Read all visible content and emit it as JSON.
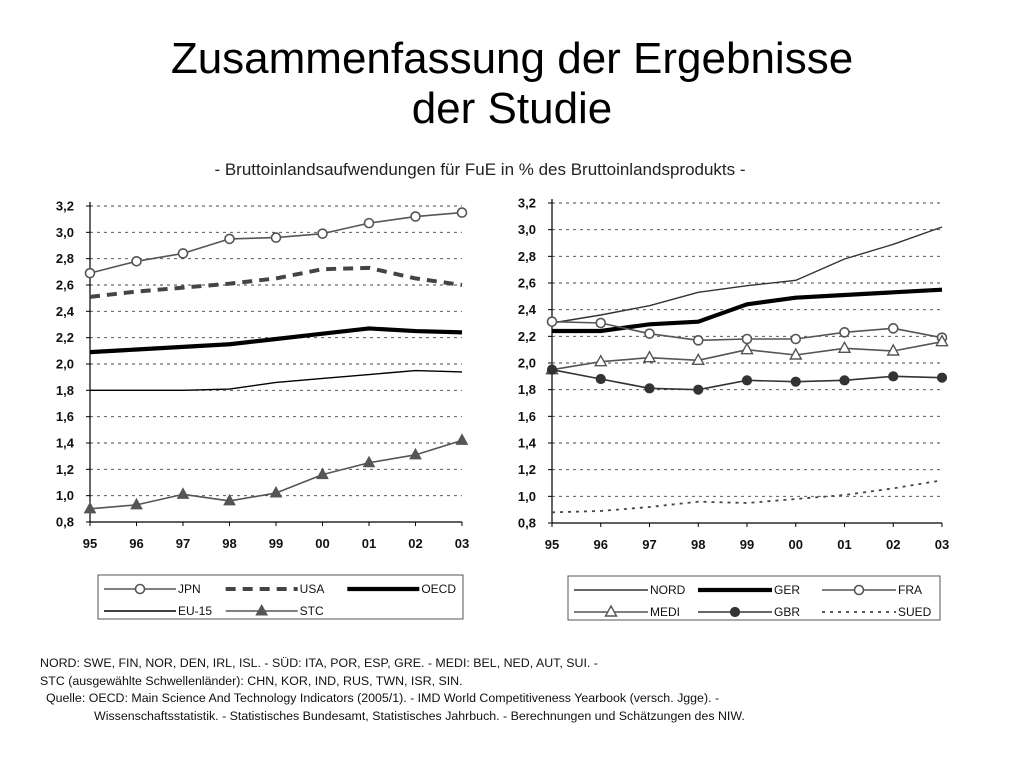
{
  "page": {
    "title_line1": "Zusammenfassung der Ergebnisse",
    "title_line2": "der Studie",
    "subtitle": "- Bruttoinlandsaufwendungen für FuE in % des Bruttoinlandsprodukts -"
  },
  "chart_data": [
    {
      "type": "line",
      "x": [
        "95",
        "96",
        "97",
        "98",
        "99",
        "00",
        "01",
        "02",
        "03"
      ],
      "ylim": [
        0.8,
        3.2
      ],
      "yticks": [
        "0,8",
        "1,0",
        "1,2",
        "1,4",
        "1,6",
        "1,8",
        "2,0",
        "2,2",
        "2,4",
        "2,6",
        "2,8",
        "3,0",
        "3,2"
      ],
      "grid": "horizontal dashed",
      "legend_position": "bottom",
      "series": [
        {
          "name": "JPN",
          "style": "line-open-circle",
          "color": "#555555",
          "values": [
            2.69,
            2.78,
            2.84,
            2.95,
            2.96,
            2.99,
            3.07,
            3.12,
            3.15
          ]
        },
        {
          "name": "USA",
          "style": "thick-dashed",
          "color": "#444444",
          "values": [
            2.51,
            2.55,
            2.58,
            2.61,
            2.65,
            2.72,
            2.73,
            2.65,
            2.6
          ]
        },
        {
          "name": "OECD",
          "style": "very-thick",
          "color": "#000000",
          "values": [
            2.09,
            2.11,
            2.13,
            2.15,
            2.19,
            2.23,
            2.27,
            2.25,
            2.24
          ]
        },
        {
          "name": "EU-15",
          "style": "thin",
          "color": "#000000",
          "values": [
            1.8,
            1.8,
            1.8,
            1.81,
            1.86,
            1.89,
            1.92,
            1.95,
            1.94
          ]
        },
        {
          "name": "STC",
          "style": "line-filled-triangle",
          "color": "#555555",
          "values": [
            0.9,
            0.93,
            1.01,
            0.96,
            1.02,
            1.16,
            1.25,
            1.31,
            1.42
          ]
        }
      ]
    },
    {
      "type": "line",
      "x": [
        "95",
        "96",
        "97",
        "98",
        "99",
        "00",
        "01",
        "02",
        "03"
      ],
      "ylim": [
        0.8,
        3.2
      ],
      "yticks": [
        "0,8",
        "1,0",
        "1,2",
        "1,4",
        "1,6",
        "1,8",
        "2,0",
        "2,2",
        "2,4",
        "2,6",
        "2,8",
        "3,0",
        "3,2"
      ],
      "grid": "horizontal dashed",
      "legend_position": "bottom",
      "series": [
        {
          "name": "NORD",
          "style": "thin",
          "color": "#333333",
          "values": [
            2.3,
            2.36,
            2.43,
            2.53,
            2.58,
            2.62,
            2.78,
            2.89,
            3.02
          ]
        },
        {
          "name": "GER",
          "style": "very-thick",
          "color": "#000000",
          "values": [
            2.24,
            2.24,
            2.29,
            2.31,
            2.44,
            2.49,
            2.51,
            2.53,
            2.55
          ]
        },
        {
          "name": "FRA",
          "style": "line-open-circle",
          "color": "#555555",
          "values": [
            2.31,
            2.3,
            2.22,
            2.17,
            2.18,
            2.18,
            2.23,
            2.26,
            2.19
          ]
        },
        {
          "name": "MEDI",
          "style": "line-open-triangle",
          "color": "#555555",
          "values": [
            1.95,
            2.01,
            2.04,
            2.02,
            2.1,
            2.06,
            2.11,
            2.09,
            2.16
          ]
        },
        {
          "name": "GBR",
          "style": "line-filled-circle",
          "color": "#333333",
          "values": [
            1.95,
            1.88,
            1.81,
            1.8,
            1.87,
            1.86,
            1.87,
            1.9,
            1.89
          ]
        },
        {
          "name": "SUED",
          "style": "dotted",
          "color": "#444444",
          "values": [
            0.88,
            0.89,
            0.92,
            0.96,
            0.95,
            0.98,
            1.01,
            1.06,
            1.12
          ]
        }
      ]
    }
  ],
  "notes": {
    "line1": "NORD: SWE, FIN, NOR, DEN, IRL, ISL. -  SÜD: ITA, POR, ESP, GRE. -  MEDI: BEL, NED, AUT, SUI. -",
    "line2": "STC (ausgewählte Schwellenländer): CHN, KOR, IND, RUS, TWN,  ISR, SIN.",
    "line3": "Quelle: OECD: Main Science And Technology Indicators (2005/1). - IMD World Competitiveness Yearbook (versch. Jgge). -",
    "line4": "Wissenschaftsstatistik. - Statistisches Bundesamt, Statistisches Jahrbuch. - Berechnungen und Schätzungen des NIW."
  }
}
